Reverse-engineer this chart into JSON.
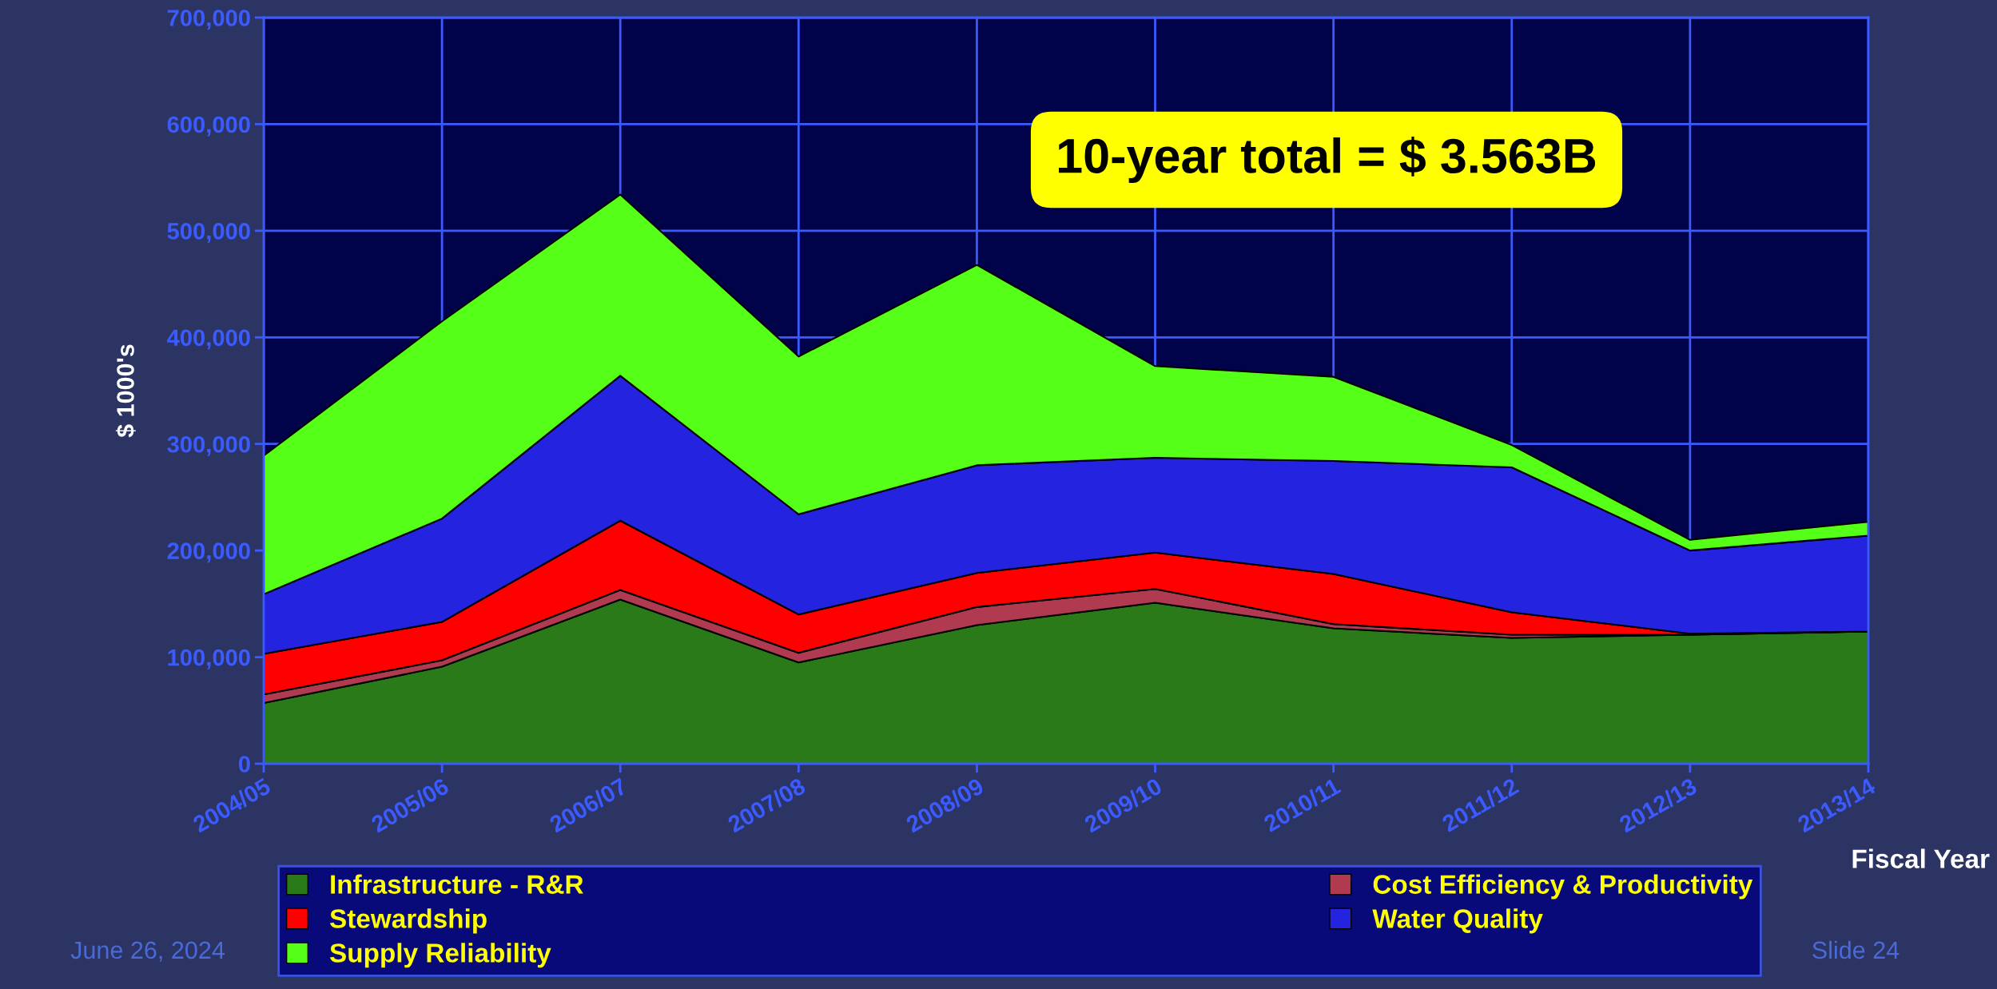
{
  "chart_data": {
    "type": "area",
    "stacked": true,
    "ylabel": "$ 1000's",
    "xlabel": "Fiscal Year",
    "categories": [
      "2004/05",
      "2005/06",
      "2006/07",
      "2007/08",
      "2008/09",
      "2009/10",
      "2010/11",
      "2011/12",
      "2012/13",
      "2013/14"
    ],
    "series": [
      {
        "name": "Infrastructure - R&R",
        "color": "#2b7a19",
        "values": [
          57000,
          91000,
          154000,
          95000,
          130000,
          151000,
          127000,
          118000,
          121000,
          124000
        ]
      },
      {
        "name": "Cost Efficiency & Productivity",
        "color": "#b03a50",
        "values": [
          8000,
          6000,
          9000,
          9000,
          17000,
          13000,
          4000,
          3000,
          0,
          0
        ]
      },
      {
        "name": "Stewardship",
        "color": "#ff0000",
        "values": [
          38000,
          36000,
          65000,
          36000,
          32000,
          34000,
          47000,
          21000,
          1000,
          0
        ]
      },
      {
        "name": "Water Quality",
        "color": "#2424e0",
        "values": [
          56000,
          97000,
          136000,
          94000,
          101000,
          89000,
          106000,
          136000,
          78000,
          90000
        ]
      },
      {
        "name": "Supply Reliability",
        "color": "#55ff17",
        "values": [
          130000,
          185000,
          170000,
          148000,
          188000,
          86000,
          79000,
          21000,
          10000,
          13000
        ]
      }
    ],
    "ylim": [
      0,
      700000
    ],
    "yticks": [
      0,
      {
        "value": 100000,
        "label": "100,000"
      },
      {
        "value": 200000,
        "label": "200,000"
      },
      {
        "value": 300000,
        "label": "300,000"
      },
      {
        "value": 400000,
        "label": "400,000"
      },
      {
        "value": 500000,
        "label": "500,000"
      },
      {
        "value": 600000,
        "label": "600,000"
      },
      {
        "value": 700000,
        "label": "700,000"
      }
    ],
    "grid": true,
    "legend": "bottom",
    "annotations": [
      "10-year total = $ 3.563B",
      "June 26, 2024",
      "Slide 24"
    ]
  }
}
